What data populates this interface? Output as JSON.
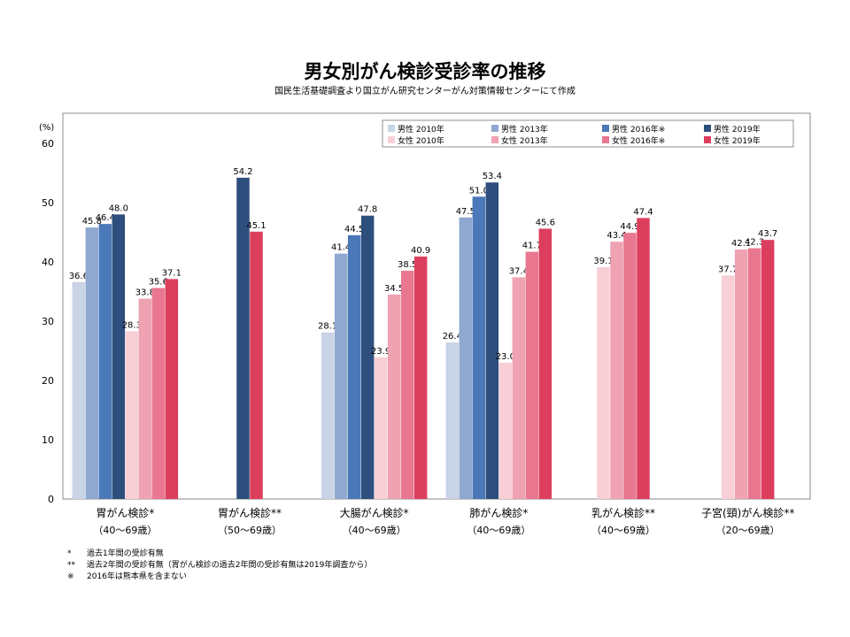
{
  "chart_data": {
    "type": "bar",
    "title": "男女別がん検診受診率の推移",
    "subtitle": "国民生活基礎調査より国立がん研究センターがん対策情報センターにて作成",
    "ylabel": "(%)",
    "ylim": [
      0,
      60
    ],
    "yticks": [
      0,
      10,
      20,
      30,
      40,
      50,
      60
    ],
    "grid": false,
    "legend_position": "top-right",
    "categories": [
      {
        "name": "胃がん検診*",
        "age": "（40〜69歳）"
      },
      {
        "name": "胃がん検診**",
        "age": "（50〜69歳）"
      },
      {
        "name": "大腸がん検診*",
        "age": "（40〜69歳）"
      },
      {
        "name": "肺がん検診*",
        "age": "（40〜69歳）"
      },
      {
        "name": "乳がん検診**",
        "age": "（40〜69歳）"
      },
      {
        "name": "子宮(頸)がん検診**",
        "age": "（20〜69歳）"
      }
    ],
    "series": [
      {
        "name": "男性 2010年",
        "color": "#c9d3e6",
        "values": [
          36.6,
          null,
          28.1,
          26.4,
          null,
          null
        ]
      },
      {
        "name": "男性 2013年",
        "color": "#8fa8cf",
        "values": [
          45.8,
          null,
          41.4,
          47.5,
          null,
          null
        ]
      },
      {
        "name": "男性 2016年※",
        "color": "#4a78b8",
        "values": [
          46.4,
          null,
          44.5,
          51.0,
          null,
          null
        ]
      },
      {
        "name": "男性 2019年",
        "color": "#2e4f7d",
        "values": [
          48.0,
          54.2,
          47.8,
          53.4,
          null,
          null
        ]
      },
      {
        "name": "女性 2010年",
        "color": "#f8cfd7",
        "values": [
          28.3,
          null,
          23.9,
          23.0,
          39.1,
          37.7
        ]
      },
      {
        "name": "女性 2013年",
        "color": "#eea2b2",
        "values": [
          33.8,
          null,
          34.5,
          37.4,
          43.4,
          42.1
        ]
      },
      {
        "name": "女性 2016年※",
        "color": "#e8778f",
        "values": [
          35.6,
          null,
          38.5,
          41.7,
          44.9,
          42.3
        ]
      },
      {
        "name": "女性 2019年",
        "color": "#dc3e5e",
        "values": [
          37.1,
          45.1,
          40.9,
          45.6,
          47.4,
          43.7
        ]
      }
    ]
  },
  "footnotes": [
    {
      "mark": "*",
      "text": "過去1年間の受診有無"
    },
    {
      "mark": "**",
      "text": "過去2年間の受診有無（胃がん検診の過去2年間の受診有無は2019年調査から）"
    },
    {
      "mark": "※",
      "text": "2016年は熊本県を含まない"
    }
  ]
}
